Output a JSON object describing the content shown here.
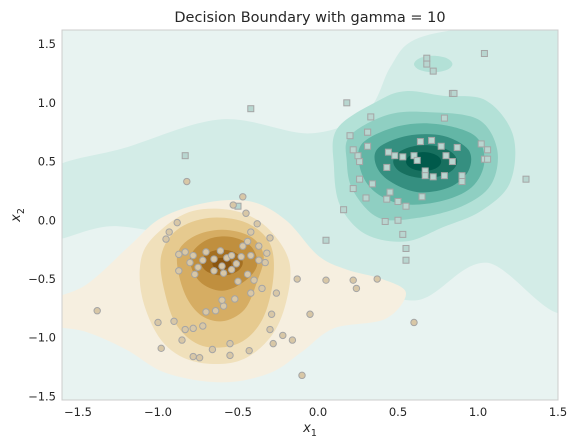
{
  "chart_data": {
    "type": "scatter",
    "title": "Decision Boundary with gamma = 10",
    "xlabel_base": "x",
    "xlabel_sub": "1",
    "ylabel_base": "x",
    "ylabel_sub": "2",
    "xlim": [
      -1.6,
      1.5
    ],
    "ylim": [
      -1.53,
      1.62
    ],
    "grid": false,
    "x_ticks": [
      -1.5,
      -1.0,
      -0.5,
      0.0,
      0.5,
      1.0,
      1.5
    ],
    "x_tick_labels": [
      "−1.5",
      "−1.0",
      "−0.5",
      "0.0",
      "0.5",
      "1.0",
      "1.5"
    ],
    "y_ticks": [
      -1.5,
      -1.0,
      -0.5,
      0.0,
      0.5,
      1.0,
      1.5
    ],
    "y_tick_labels": [
      "−1.5",
      "−1.0",
      "−0.5",
      "0.0",
      "0.5",
      "1.0",
      "1.5"
    ],
    "colors": {
      "background_region": "#e8f3f1",
      "teal_levels": [
        "#d3ece7",
        "#b3e1d7",
        "#8fcfc2",
        "#63b6a6",
        "#358f80",
        "#17705f",
        "#005a4b"
      ],
      "brown_levels": [
        "#f6efe0",
        "#f0e0bb",
        "#e6ca8f",
        "#d6ad63",
        "#c08f3e",
        "#a46f21",
        "#8a5510"
      ],
      "square_marker": "#b8d6d0",
      "circle_marker": "#d8c7a6",
      "marker_edge": "#a5a5a5"
    },
    "series": [
      {
        "marker": "square",
        "points": [
          [
            0.18,
            1.0
          ],
          [
            0.72,
            1.27
          ],
          [
            0.84,
            1.08
          ],
          [
            0.85,
            1.08
          ],
          [
            1.04,
            1.42
          ],
          [
            0.68,
            1.38
          ],
          [
            0.68,
            1.33
          ],
          [
            0.79,
            0.87
          ],
          [
            0.33,
            0.88
          ],
          [
            0.31,
            0.75
          ],
          [
            0.31,
            0.75
          ],
          [
            0.53,
            0.54
          ],
          [
            0.48,
            0.55
          ],
          [
            0.6,
            0.55
          ],
          [
            0.62,
            0.51
          ],
          [
            0.67,
            0.42
          ],
          [
            0.67,
            0.38
          ],
          [
            0.72,
            0.37
          ],
          [
            0.79,
            0.38
          ],
          [
            0.9,
            0.38
          ],
          [
            0.9,
            0.33
          ],
          [
            0.84,
            0.5
          ],
          [
            0.8,
            0.55
          ],
          [
            0.77,
            0.63
          ],
          [
            0.71,
            0.68
          ],
          [
            0.64,
            0.67
          ],
          [
            0.44,
            0.58
          ],
          [
            0.43,
            0.45
          ],
          [
            0.31,
            0.63
          ],
          [
            0.34,
            0.31
          ],
          [
            0.26,
            0.5
          ],
          [
            0.26,
            0.35
          ],
          [
            0.25,
            0.55
          ],
          [
            0.22,
            0.27
          ],
          [
            0.2,
            0.72
          ],
          [
            0.22,
            0.6
          ],
          [
            0.16,
            0.09
          ],
          [
            0.3,
            0.19
          ],
          [
            0.5,
            0.16
          ],
          [
            0.55,
            0.12
          ],
          [
            0.65,
            0.2
          ],
          [
            0.42,
            -0.01
          ],
          [
            0.53,
            -0.12
          ],
          [
            0.55,
            -0.24
          ],
          [
            0.55,
            -0.34
          ],
          [
            0.45,
            0.24
          ],
          [
            0.43,
            0.18
          ],
          [
            1.02,
            0.65
          ],
          [
            1.04,
            0.52
          ],
          [
            1.06,
            0.6
          ],
          [
            1.06,
            0.52
          ],
          [
            0.87,
            0.62
          ],
          [
            1.3,
            0.35
          ],
          [
            -0.83,
            0.55
          ],
          [
            -0.42,
            0.95
          ],
          [
            -0.5,
            0.12
          ],
          [
            0.05,
            -0.17
          ],
          [
            0.5,
            0.0
          ]
        ]
      },
      {
        "marker": "circle",
        "points": [
          [
            -0.82,
            0.33
          ],
          [
            -0.47,
            0.2
          ],
          [
            -0.53,
            0.13
          ],
          [
            -0.45,
            0.06
          ],
          [
            -0.38,
            -0.03
          ],
          [
            -0.42,
            -0.1
          ],
          [
            -0.37,
            -0.22
          ],
          [
            -0.3,
            -0.15
          ],
          [
            -0.32,
            -0.28
          ],
          [
            -0.33,
            -0.36
          ],
          [
            -0.42,
            -0.3
          ],
          [
            -0.48,
            -0.31
          ],
          [
            -0.51,
            -0.37
          ],
          [
            -0.57,
            -0.32
          ],
          [
            -0.6,
            -0.39
          ],
          [
            -0.65,
            -0.33
          ],
          [
            -0.7,
            -0.27
          ],
          [
            -0.72,
            -0.34
          ],
          [
            -0.75,
            -0.4
          ],
          [
            -0.77,
            -0.46
          ],
          [
            -0.8,
            -0.36
          ],
          [
            -0.78,
            -0.3
          ],
          [
            -0.83,
            -0.27
          ],
          [
            -0.87,
            -0.29
          ],
          [
            -0.61,
            -0.26
          ],
          [
            -0.59,
            -0.45
          ],
          [
            -0.54,
            -0.42
          ],
          [
            -0.5,
            -0.52
          ],
          [
            -0.44,
            -0.46
          ],
          [
            -0.4,
            -0.51
          ],
          [
            -0.35,
            -0.58
          ],
          [
            -0.37,
            -0.34
          ],
          [
            -0.42,
            -0.62
          ],
          [
            -0.52,
            -0.67
          ],
          [
            -0.59,
            -0.73
          ],
          [
            -0.6,
            -0.68
          ],
          [
            -0.64,
            -0.77
          ],
          [
            -0.7,
            -0.78
          ],
          [
            -0.72,
            -0.9
          ],
          [
            -0.78,
            -0.92
          ],
          [
            -0.83,
            -0.93
          ],
          [
            -0.9,
            -0.86
          ],
          [
            -1.0,
            -0.87
          ],
          [
            -0.98,
            -1.09
          ],
          [
            -0.85,
            -1.02
          ],
          [
            -0.78,
            -1.16
          ],
          [
            -0.74,
            -1.17
          ],
          [
            -0.66,
            -1.1
          ],
          [
            -0.55,
            -1.05
          ],
          [
            -0.55,
            -1.15
          ],
          [
            -0.43,
            -1.11
          ],
          [
            -0.3,
            -0.93
          ],
          [
            -0.28,
            -1.05
          ],
          [
            -0.16,
            -1.02
          ],
          [
            -0.22,
            -0.98
          ],
          [
            -0.05,
            -0.8
          ],
          [
            -0.29,
            -0.8
          ],
          [
            -0.26,
            -0.62
          ],
          [
            -0.13,
            -0.5
          ],
          [
            -0.1,
            -1.32
          ],
          [
            -0.54,
            -0.3
          ],
          [
            -0.88,
            -0.02
          ],
          [
            -0.93,
            -0.1
          ],
          [
            -0.95,
            -0.16
          ],
          [
            -0.87,
            -0.43
          ],
          [
            -0.65,
            -0.43
          ],
          [
            -1.38,
            -0.77
          ],
          [
            0.05,
            -0.51
          ],
          [
            0.22,
            -0.51
          ],
          [
            0.24,
            -0.58
          ],
          [
            0.37,
            -0.5
          ],
          [
            0.6,
            -0.87
          ],
          [
            -0.44,
            -0.18
          ],
          [
            -0.47,
            -0.22
          ]
        ]
      }
    ]
  }
}
